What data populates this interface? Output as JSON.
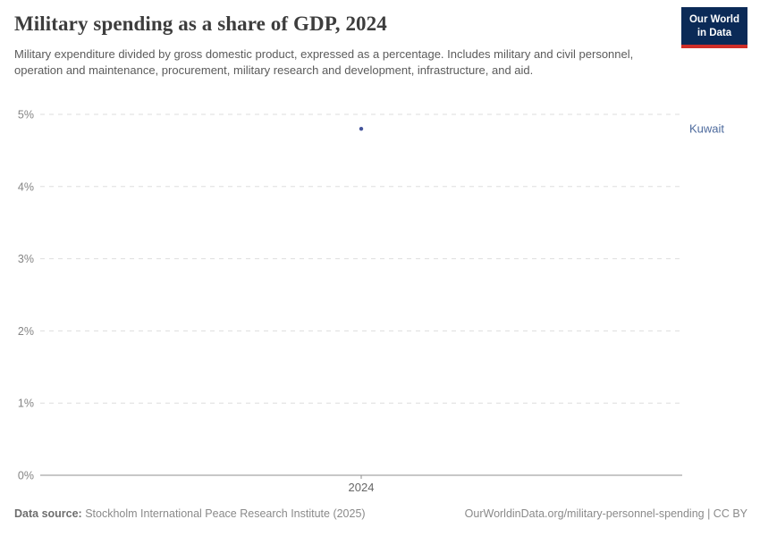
{
  "header": {
    "title": "Military spending as a share of GDP, 2024",
    "subtitle": "Military expenditure divided by gross domestic product, expressed as a percentage. Includes military and civil personnel, operation and maintenance, procurement, military research and development, infrastructure, and aid.",
    "logo_line1": "Our World",
    "logo_line2": "in Data"
  },
  "footer": {
    "data_source_label": "Data source:",
    "data_source_value": " Stockholm International Peace Research Institute (2025)",
    "credit": "OurWorldinData.org/military-personnel-spending | CC BY"
  },
  "colors": {
    "logo_bg": "#0b2a57",
    "logo_red": "#cf2e28",
    "entity_blue": "#4d6a9d",
    "point_blue": "#44549b",
    "gridline": "#dedede",
    "axis_line": "#8f8f8f",
    "tick_label": "#858585",
    "x_label": "#666666"
  },
  "chart_data": {
    "type": "scatter",
    "title": "Military spending as a share of GDP, 2024",
    "xlabel": "",
    "ylabel": "",
    "x_tick_label": "2024",
    "yticks": [
      0,
      1,
      2,
      3,
      4,
      5
    ],
    "ytick_suffix": "%",
    "ylim": [
      0,
      5
    ],
    "grid": "dashed horizontal, solid baseline at 0%",
    "legend_position": "right of point",
    "series": [
      {
        "name": "Kuwait",
        "x": 2024,
        "value": 4.8
      }
    ]
  }
}
